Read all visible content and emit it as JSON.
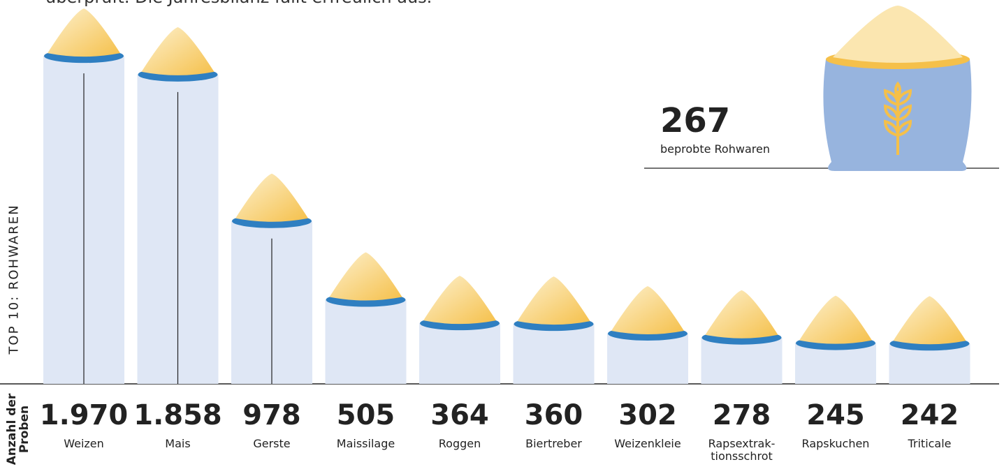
{
  "intro": "überprüft. Die Jahresbilanz fällt erfreulich aus.",
  "side_label": "TOP 10: ROHWAREN",
  "count_label": "Anzahl der\nProben",
  "total": {
    "value": 267,
    "label": "beprobte Rohwaren"
  },
  "chart_data": {
    "type": "bar",
    "categories": [
      "Weizen",
      "Mais",
      "Gerste",
      "Maissilage",
      "Roggen",
      "Biertreber",
      "Weizenkleie",
      "Rapsextrak-\ntionsschrot",
      "Rapskuchen",
      "Triticale"
    ],
    "values": [
      1970,
      1858,
      978,
      505,
      364,
      360,
      302,
      278,
      245,
      242
    ],
    "value_labels": [
      "1.970",
      "1.858",
      "978",
      "505",
      "364",
      "360",
      "302",
      "278",
      "245",
      "242"
    ],
    "color": "#dfe7f5"
  }
}
